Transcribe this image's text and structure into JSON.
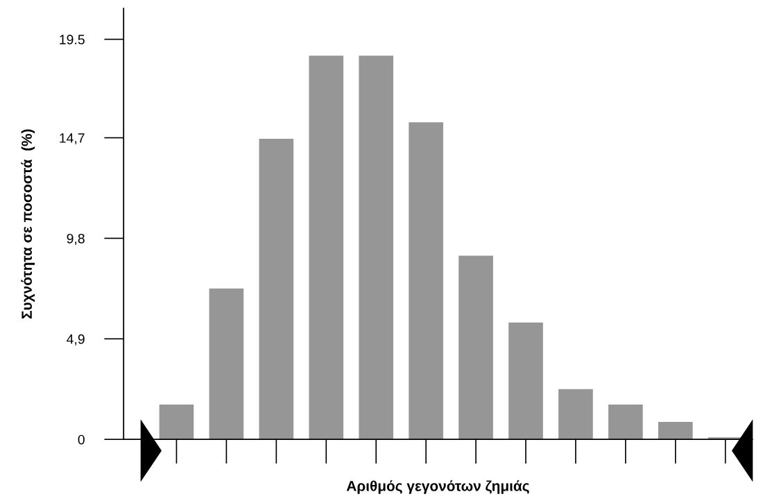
{
  "chart_data": {
    "type": "bar",
    "xlabel": "Αριθμός γεγονότων ζημιάς",
    "ylabel": "Συχνότητα σε ποσοστά  (%)",
    "categories": [
      null,
      null,
      null,
      null,
      null,
      null,
      null,
      null,
      null,
      null,
      null,
      null
    ],
    "values": [
      1.7,
      7.35,
      14.65,
      18.7,
      18.7,
      15.45,
      8.95,
      5.7,
      2.45,
      1.7,
      0.85,
      0.1
    ],
    "color": "#969696",
    "ylim": [
      0,
      21
    ],
    "yticks": [
      0,
      {
        "value": 4.9,
        "label": "4,9"
      },
      {
        "value": 9.8,
        "label": "9,8"
      },
      {
        "value": 14.7,
        "label": "14,7"
      },
      19.5
    ],
    "grid": false
  }
}
